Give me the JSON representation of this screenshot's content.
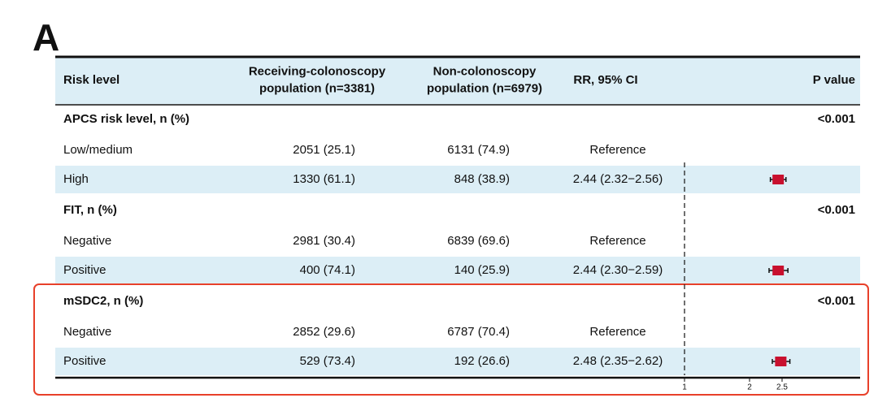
{
  "label": "A",
  "table": {
    "header": [
      [
        "Risk level"
      ],
      [
        "Receiving-colonoscopy",
        "population (n=3381)"
      ],
      [
        "Non-colonoscopy",
        "population (n=6979)"
      ],
      [
        "RR, 95% CI"
      ],
      [
        "P value"
      ]
    ],
    "sections": [
      {
        "title": "APCS risk level, n (%)",
        "p": "<0.001",
        "rows": [
          [
            "Low/medium",
            "2051 (25.1)",
            "6131 (74.9)",
            "Reference"
          ],
          [
            "High",
            "1330 (61.1)",
            "848 (38.9)",
            "2.44 (2.32−2.56)"
          ]
        ],
        "estimate": {
          "rr": 2.44,
          "lo": 2.32,
          "hi": 2.56
        }
      },
      {
        "title": "FIT, n (%)",
        "p": "<0.001",
        "rows": [
          [
            "Negative",
            "2981 (30.4)",
            "6839 (69.6)",
            "Reference"
          ],
          [
            "Positive",
            "400 (74.1)",
            "140 (25.9)",
            "2.44 (2.30−2.59)"
          ]
        ],
        "estimate": {
          "rr": 2.44,
          "lo": 2.3,
          "hi": 2.59
        }
      },
      {
        "title": "mSDC2, n (%)",
        "p": "<0.001",
        "rows": [
          [
            "Negative",
            "2852 (29.6)",
            "6787 (70.4)",
            "Reference"
          ],
          [
            "Positive",
            "529 (73.4)",
            "192 (26.6)",
            "2.48 (2.35−2.62)"
          ]
        ],
        "estimate": {
          "rr": 2.48,
          "lo": 2.35,
          "hi": 2.62
        }
      }
    ]
  },
  "forest": {
    "xlim": [
      1,
      2.5
    ],
    "xticks": [
      1,
      2,
      2.5
    ],
    "color": "#c8102e"
  }
}
